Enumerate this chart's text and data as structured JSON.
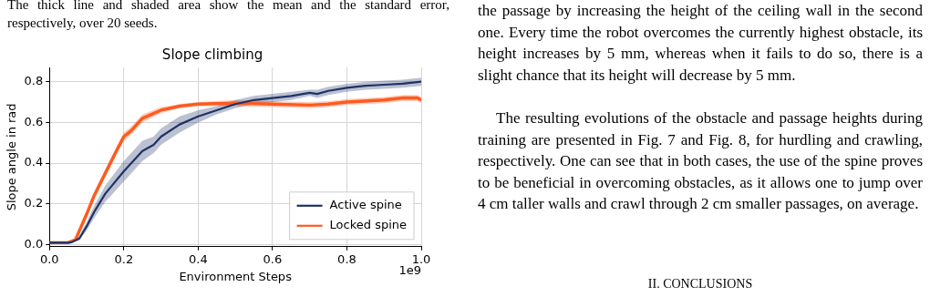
{
  "chart_data": {
    "type": "line",
    "title": "Slope climbing",
    "xlabel": "Environment Steps",
    "ylabel": "Slope angle in rad",
    "xlim": [
      0,
      1
    ],
    "xticks": [
      {
        "value": 0,
        "label": "0.0"
      },
      {
        "value": 0.2,
        "label": "0.2"
      },
      {
        "value": 0.4,
        "label": "0.4"
      },
      {
        "value": 0.6,
        "label": "0.6"
      },
      {
        "value": 0.8,
        "label": "0.8"
      },
      {
        "value": 1,
        "label": "1.0"
      }
    ],
    "ylim": [
      -0.01,
      0.87
    ],
    "yticks": [
      {
        "value": 0,
        "label": "0.0"
      },
      0.2,
      0.4,
      0.6,
      0.8
    ],
    "grid": true,
    "legend": "bottom right",
    "line_style": "solid",
    "marker": "none",
    "annotations": [
      "The thick line and shaded area show the mean and the standard error, respectively, over 20 seeds.",
      "the passage by increasing the height of the ceiling wall in the second one. Every time the robot overcomes the currently highest obstacle, its height increases by 5 mm, whereas when it fails to do so, there is a slight chance that its height will decrease by 5 mm.",
      "The resulting evolutions of the obstacle and passage heights during training are presented in Fig. 7 and Fig. 8, for hurdling and crawling, respectively. One can see that in both cases, the use of the spine proves to be beneficial in overcoming obstacles, as it allows one to jump over 4 cm taller walls and crawl through 2 cm smaller passages, on average.",
      "II. CONCLUSIONS",
      "1e9"
    ],
    "series": [
      {
        "name": "Active spine",
        "color": "#1f3266",
        "x": [
          0,
          0.05,
          0.06,
          0.08,
          0.1,
          0.12,
          0.15,
          0.2,
          0.25,
          0.28,
          0.3,
          0.35,
          0.4,
          0.45,
          0.5,
          0.55,
          0.6,
          0.65,
          0.7,
          0.72,
          0.75,
          0.8,
          0.85,
          0.9,
          0.95,
          1.0
        ],
        "values": [
          0.01,
          0.01,
          0.012,
          0.03,
          0.09,
          0.16,
          0.25,
          0.36,
          0.46,
          0.49,
          0.53,
          0.59,
          0.63,
          0.66,
          0.69,
          0.71,
          0.72,
          0.73,
          0.745,
          0.74,
          0.755,
          0.77,
          0.78,
          0.785,
          0.79,
          0.8
        ],
        "lower": [
          0.01,
          0.01,
          0.01,
          0.02,
          0.07,
          0.13,
          0.21,
          0.31,
          0.41,
          0.45,
          0.49,
          0.55,
          0.6,
          0.64,
          0.67,
          0.69,
          0.7,
          0.71,
          0.73,
          0.72,
          0.735,
          0.75,
          0.76,
          0.765,
          0.77,
          0.78
        ],
        "upper": [
          0.01,
          0.01,
          0.014,
          0.04,
          0.11,
          0.19,
          0.29,
          0.41,
          0.51,
          0.53,
          0.57,
          0.63,
          0.66,
          0.68,
          0.71,
          0.73,
          0.74,
          0.75,
          0.76,
          0.76,
          0.775,
          0.79,
          0.8,
          0.805,
          0.81,
          0.82
        ]
      },
      {
        "name": "Locked spine",
        "color": "#ff5a1f",
        "x": [
          0,
          0.05,
          0.07,
          0.1,
          0.12,
          0.15,
          0.18,
          0.2,
          0.22,
          0.25,
          0.3,
          0.35,
          0.4,
          0.5,
          0.6,
          0.7,
          0.75,
          0.8,
          0.9,
          0.95,
          0.99,
          1.0
        ],
        "values": [
          0.01,
          0.01,
          0.025,
          0.15,
          0.24,
          0.35,
          0.46,
          0.53,
          0.56,
          0.62,
          0.66,
          0.68,
          0.69,
          0.695,
          0.69,
          0.685,
          0.69,
          0.7,
          0.71,
          0.72,
          0.72,
          0.71
        ],
        "lower": [
          0.01,
          0.01,
          0.02,
          0.13,
          0.22,
          0.33,
          0.44,
          0.51,
          0.54,
          0.6,
          0.645,
          0.67,
          0.68,
          0.68,
          0.675,
          0.67,
          0.675,
          0.685,
          0.695,
          0.705,
          0.705,
          0.695
        ],
        "upper": [
          0.01,
          0.01,
          0.03,
          0.17,
          0.26,
          0.37,
          0.48,
          0.55,
          0.58,
          0.64,
          0.675,
          0.69,
          0.7,
          0.71,
          0.705,
          0.7,
          0.705,
          0.715,
          0.725,
          0.735,
          0.735,
          0.725
        ]
      }
    ]
  }
}
